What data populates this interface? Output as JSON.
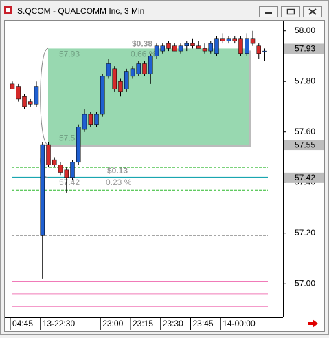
{
  "window": {
    "title": "S.QCOM - QUALCOMM Inc, 3 Min"
  },
  "chart_data": {
    "type": "candlestick",
    "open": [
      57.79,
      57.78,
      57.74,
      57.72,
      57.71,
      57.19,
      57.55,
      57.49,
      57.47,
      57.45,
      57.42,
      57.48,
      57.61,
      57.67,
      57.63,
      57.67,
      57.82,
      57.85,
      57.8,
      57.77,
      57.82,
      57.83,
      57.87,
      57.83,
      57.9,
      57.92,
      57.95,
      57.94,
      57.92,
      57.94,
      57.95,
      57.94,
      57.93,
      57.92,
      57.91,
      57.97,
      57.96,
      57.97,
      57.97,
      57.91,
      57.97,
      57.94,
      57.92
    ],
    "high": [
      57.8,
      57.79,
      57.75,
      57.73,
      57.8,
      57.56,
      57.56,
      57.5,
      57.48,
      57.46,
      57.49,
      57.63,
      57.69,
      57.68,
      57.68,
      57.83,
      57.89,
      57.86,
      57.81,
      57.85,
      57.86,
      57.88,
      57.88,
      57.91,
      57.95,
      57.95,
      57.96,
      57.95,
      57.95,
      57.96,
      57.97,
      57.96,
      57.95,
      57.96,
      57.98,
      57.99,
      57.98,
      57.98,
      57.98,
      57.99,
      58.0,
      57.95,
      57.93
    ],
    "low": [
      57.77,
      57.72,
      57.69,
      57.7,
      57.7,
      57.02,
      57.46,
      57.46,
      57.43,
      57.36,
      57.41,
      57.47,
      57.6,
      57.62,
      57.62,
      57.66,
      57.81,
      57.76,
      57.74,
      57.76,
      57.81,
      57.82,
      57.82,
      57.79,
      57.89,
      57.91,
      57.92,
      57.92,
      57.91,
      57.92,
      57.93,
      57.93,
      57.91,
      57.91,
      57.9,
      57.95,
      57.95,
      57.95,
      57.9,
      57.9,
      57.94,
      57.89,
      57.88
    ],
    "close": [
      57.77,
      57.73,
      57.7,
      57.71,
      57.78,
      57.55,
      57.47,
      57.47,
      57.44,
      57.42,
      57.48,
      57.62,
      57.67,
      57.63,
      57.67,
      57.82,
      57.87,
      57.77,
      57.76,
      57.84,
      57.85,
      57.87,
      57.83,
      57.9,
      57.94,
      57.94,
      57.93,
      57.92,
      57.94,
      57.95,
      57.94,
      57.93,
      57.92,
      57.95,
      57.97,
      57.96,
      57.97,
      57.96,
      57.91,
      57.97,
      57.95,
      57.91,
      57.92
    ],
    "up_color": "#1f5fd0",
    "down_color": "#d42a2a",
    "ylim": [
      56.87,
      58.04
    ],
    "yticks": [
      {
        "value": 57,
        "label": "57.00"
      },
      {
        "value": 57.2,
        "label": "57.20"
      },
      {
        "value": 57.4,
        "label": "57.40"
      },
      {
        "value": 57.6,
        "label": "57.60"
      },
      {
        "value": 57.8,
        "label": "57.80"
      },
      {
        "value": 58,
        "label": "58.00"
      }
    ],
    "xticks": [
      {
        "value": 0,
        "label": "04:45"
      },
      {
        "value": 5,
        "label": "13-22:30"
      },
      {
        "value": 15,
        "label": "23:00"
      },
      {
        "value": 20,
        "label": "23:15"
      },
      {
        "value": 25,
        "label": "23:30"
      },
      {
        "value": 30,
        "label": "23:45"
      },
      {
        "value": 35,
        "label": "14-00:00"
      }
    ],
    "price_tags": [
      57.93,
      57.55,
      57.42
    ],
    "hlines": [
      {
        "value": 57.46,
        "color": "#2db82d",
        "dash": true
      },
      {
        "value": 57.42,
        "color": "#1aa6b0",
        "dash": false
      },
      {
        "value": 57.37,
        "color": "#2db82d",
        "dash": true
      },
      {
        "value": 57.19,
        "color": "#999999",
        "dash": true
      },
      {
        "value": 57.01,
        "color": "#f07ab8",
        "dash": false
      },
      {
        "value": 56.96,
        "color": "#f07ab8",
        "dash": false
      },
      {
        "value": 56.91,
        "color": "#f07ab8",
        "dash": false
      }
    ],
    "measures": [
      {
        "top": 57.93,
        "bottom": 57.55,
        "change": "$0.38",
        "pct": "0.66 %"
      },
      {
        "bottom": 57.42,
        "change": "$0.13",
        "pct": "0.23 %"
      }
    ]
  }
}
